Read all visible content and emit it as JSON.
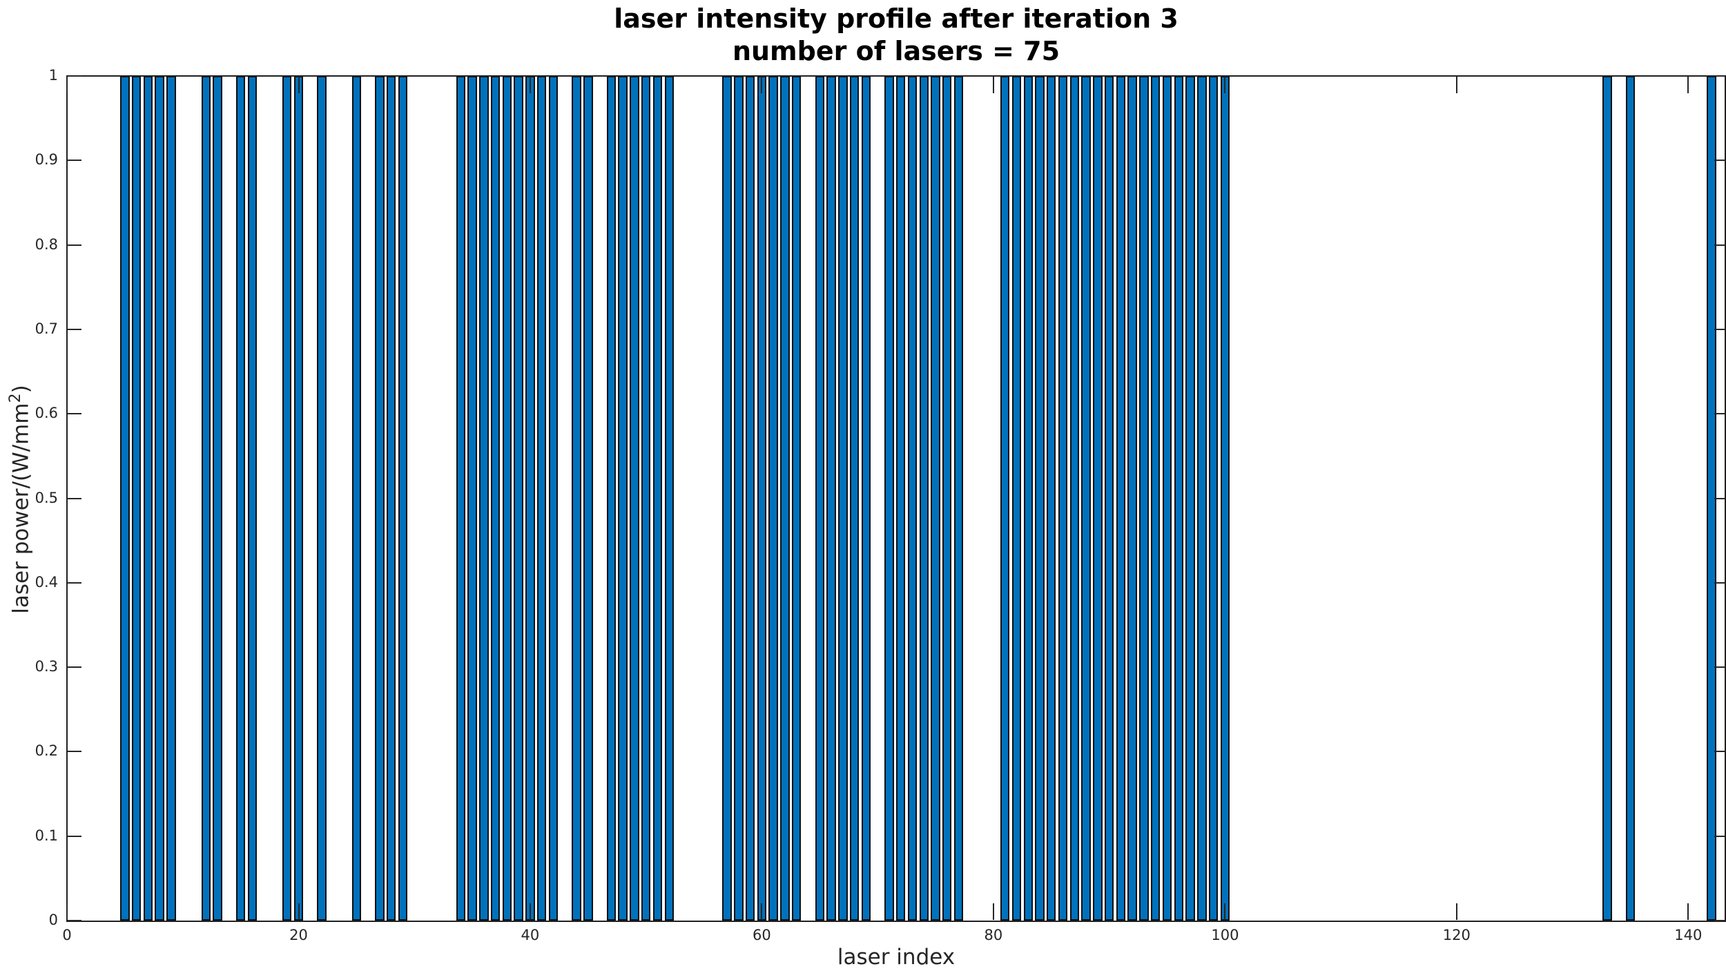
{
  "chart_data": {
    "type": "bar",
    "title_line1": "laser intensity profile after iteration 3",
    "title_line2": "number of lasers = 75",
    "xlabel": "laser index",
    "ylabel": {
      "prefix": "laser power/(W/mm",
      "sup": "2",
      "suffix": ")"
    },
    "x_ticks": [
      0,
      20,
      40,
      60,
      80,
      100,
      120,
      140
    ],
    "x_tick_labels": [
      "0",
      "20",
      "40",
      "60",
      "80",
      "100",
      "120",
      "140"
    ],
    "y_ticks": [
      0,
      0.1,
      0.2,
      0.3,
      0.4,
      0.5,
      0.6,
      0.7,
      0.8,
      0.9,
      1
    ],
    "y_tick_labels": [
      "0",
      "0.1",
      "0.2",
      "0.3",
      "0.4",
      "0.5",
      "0.6",
      "0.7",
      "0.8",
      "0.9",
      "1"
    ],
    "xlim": [
      0,
      143.2
    ],
    "ylim": [
      0,
      1
    ],
    "bar_width": 0.8,
    "bar_value": 1,
    "bar_indices": [
      5,
      6,
      7,
      8,
      9,
      12,
      13,
      15,
      16,
      19,
      20,
      22,
      25,
      27,
      28,
      29,
      34,
      35,
      36,
      37,
      38,
      39,
      40,
      41,
      42,
      44,
      45,
      47,
      48,
      49,
      50,
      51,
      52,
      57,
      58,
      59,
      60,
      61,
      62,
      63,
      65,
      66,
      67,
      68,
      69,
      71,
      72,
      73,
      74,
      75,
      76,
      77,
      81,
      82,
      83,
      84,
      85,
      86,
      87,
      88,
      89,
      90,
      91,
      92,
      93,
      94,
      95,
      96,
      97,
      98,
      99,
      100,
      133,
      135,
      142
    ],
    "bar_count": 75,
    "bar_color": "#0072BD",
    "bar_edge_color": "#0f0f0f",
    "axis_color": "#262626",
    "grid": false,
    "legend": null
  }
}
